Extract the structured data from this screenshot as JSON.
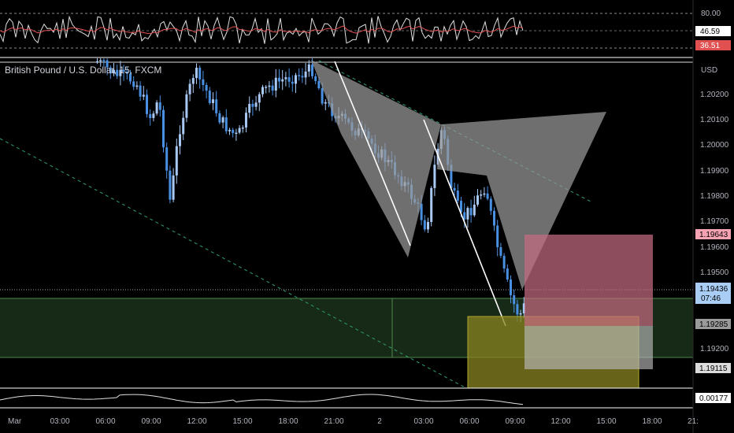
{
  "symbol": {
    "pair": "British Pound / U.S. Dollar",
    "interval": "15",
    "source": "FXCM",
    "full": "British Pound / U.S. Dollar, 15, FXCM"
  },
  "currency": "USD",
  "colors": {
    "background": "#000000",
    "candle_up": "#a9c9f5",
    "candle_down": "#4a90e2",
    "rsi_line": "#e0e0e0",
    "rsi_ma": "#e05050",
    "harmonic_fill": "#9a9a9a",
    "trend_dashed": "#2e9e6b",
    "zone_green": "#2a4a2a",
    "zone_yellow": "#8a8420",
    "risk_red": "#c56b80",
    "target_gray": "#8f8f8f",
    "badge_red": "#f5a3b3",
    "badge_blue": "#a9cdf5",
    "badge_gray": "#9a9a9a"
  },
  "chart_data": {
    "type": "candlestick",
    "price_axis": {
      "range": [
        1.1905,
        1.204
      ],
      "ticks": [
        "1.20200",
        "1.20100",
        "1.20000",
        "1.19900",
        "1.19800",
        "1.19700",
        "1.19600",
        "1.19500",
        "1.19200"
      ]
    },
    "time_axis": {
      "labels": [
        "Mar",
        "03:00",
        "06:00",
        "09:00",
        "12:00",
        "15:00",
        "18:00",
        "21:00",
        "2",
        "03:00",
        "06:00",
        "09:00",
        "12:00",
        "15:00",
        "18:00",
        "21:"
      ]
    },
    "rsi": {
      "levels": [
        "80.00",
        "46.59",
        "36.51"
      ]
    },
    "lower_indicator": {
      "value": "0.00177"
    },
    "price_badges": {
      "upper_red": "1.19643",
      "current": "1.19436",
      "countdown": "07:46",
      "gray_mid": "1.19285",
      "gray_low": "1.19115"
    }
  }
}
